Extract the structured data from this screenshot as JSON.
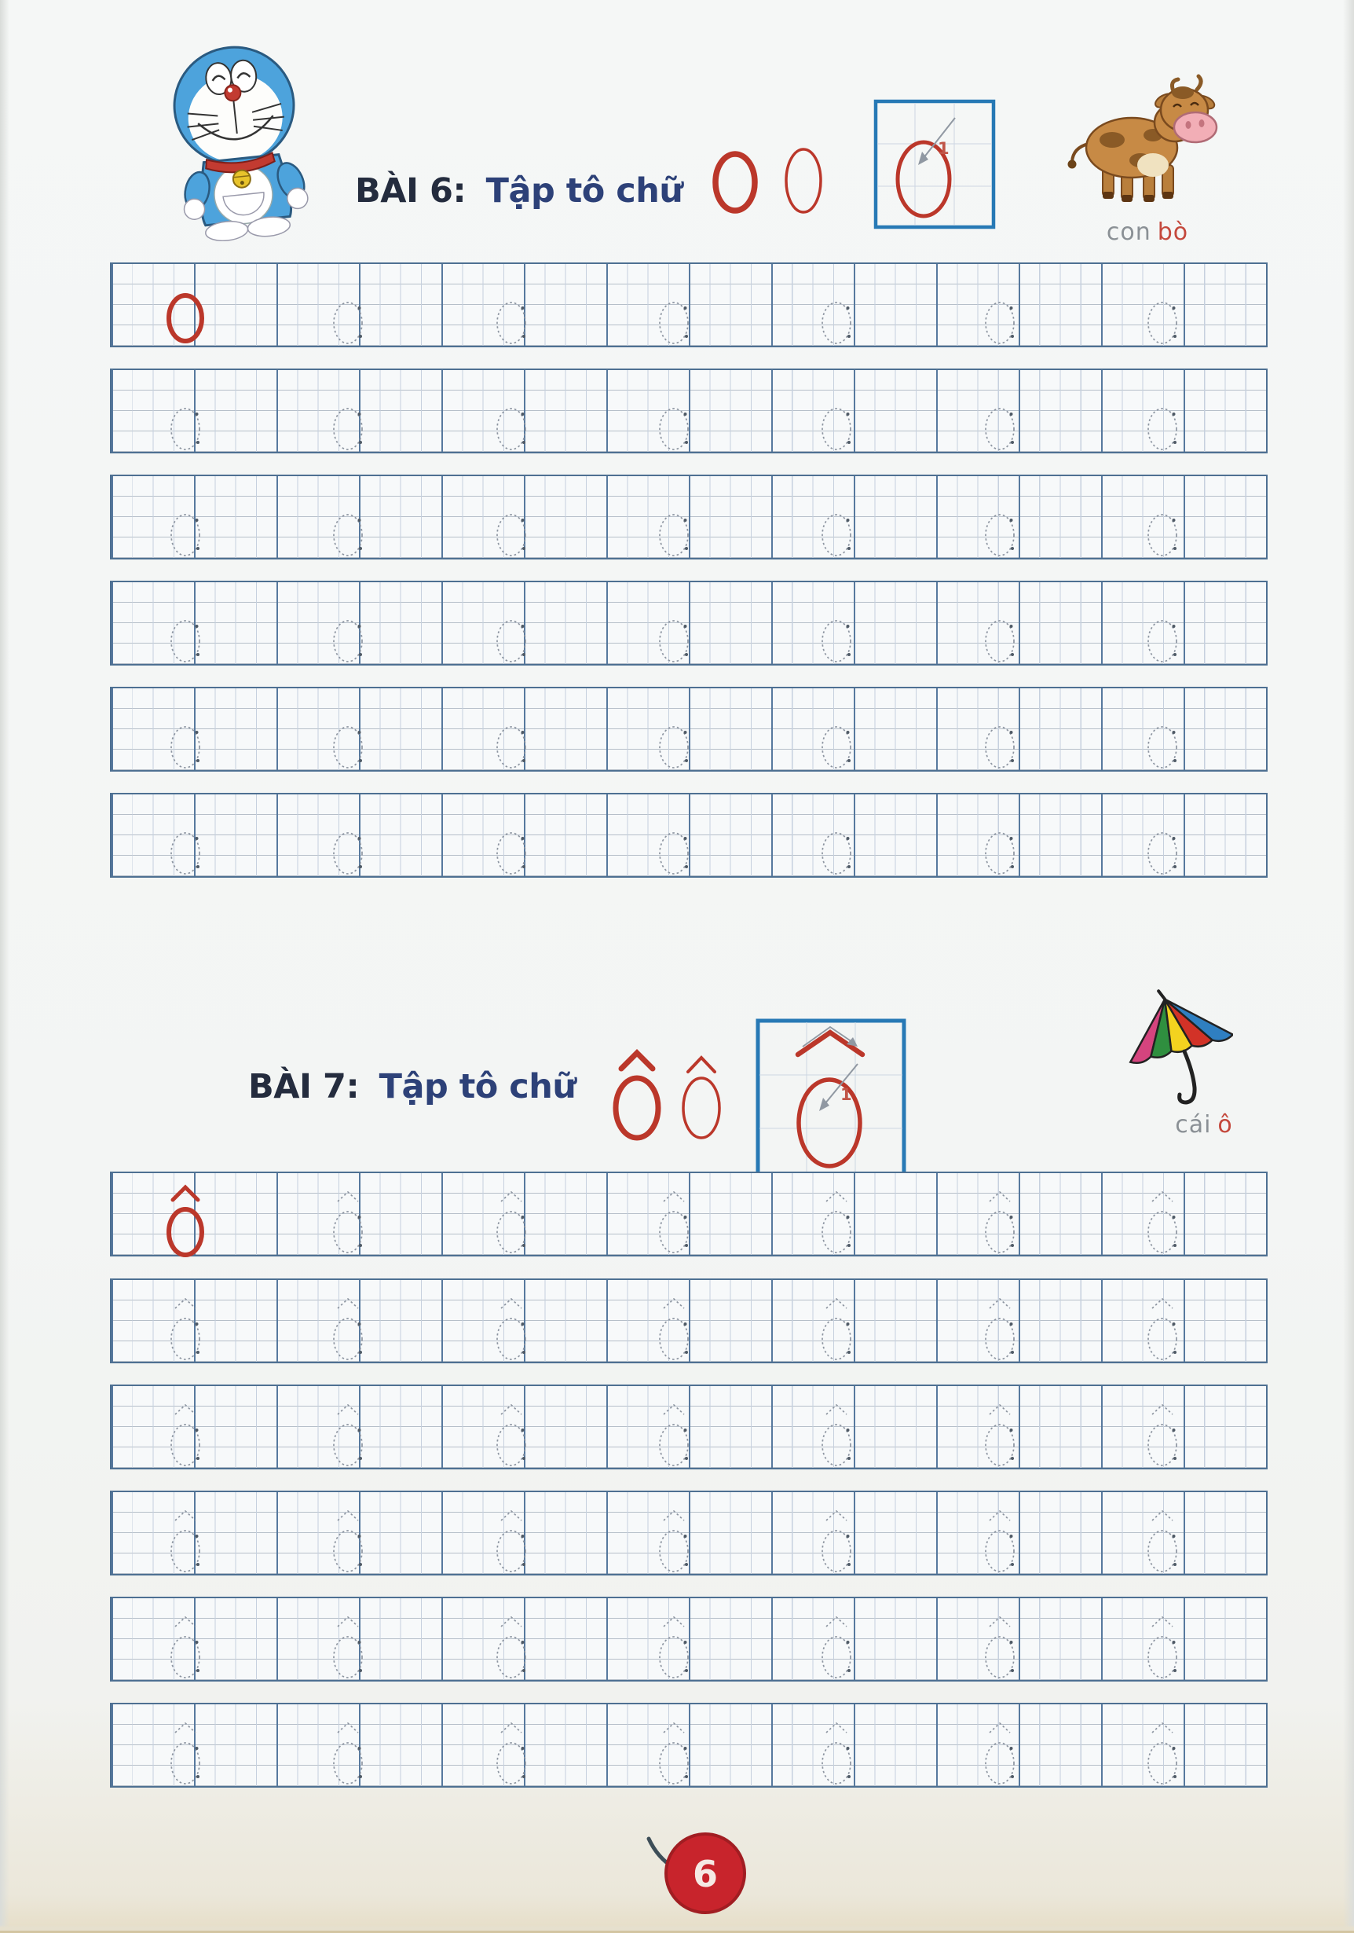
{
  "page": {
    "number": "6"
  },
  "lessons": [
    {
      "title_prefix": "BÀI 6:",
      "title_main": "Tập tô chữ",
      "letter": "O",
      "has_hat": false,
      "stroke_number": "1",
      "figure": "cow",
      "figure_label_word": "con",
      "figure_label_name": "bò",
      "practice_rows": 6,
      "letters_per_row": 7
    },
    {
      "title_prefix": "BÀI 7:",
      "title_main": "Tập tô chữ",
      "letter": "Ô",
      "has_hat": true,
      "stroke_number": "1",
      "figure": "umbrella",
      "figure_label_word": "cái",
      "figure_label_name": "ô",
      "practice_rows": 6,
      "letters_per_row": 7
    }
  ],
  "colors": {
    "letter_red": "#bb372a",
    "title_navy": "#2d4178",
    "title_dark": "#242c3e",
    "trace_gray": "#8d95a1",
    "trace_dot": "#4f5a66",
    "grid_blue": "#57799e",
    "box_blue": "#2779b5",
    "label_gray": "#8a9095",
    "label_red": "#c4483c",
    "badge_red": "#c8242c"
  }
}
